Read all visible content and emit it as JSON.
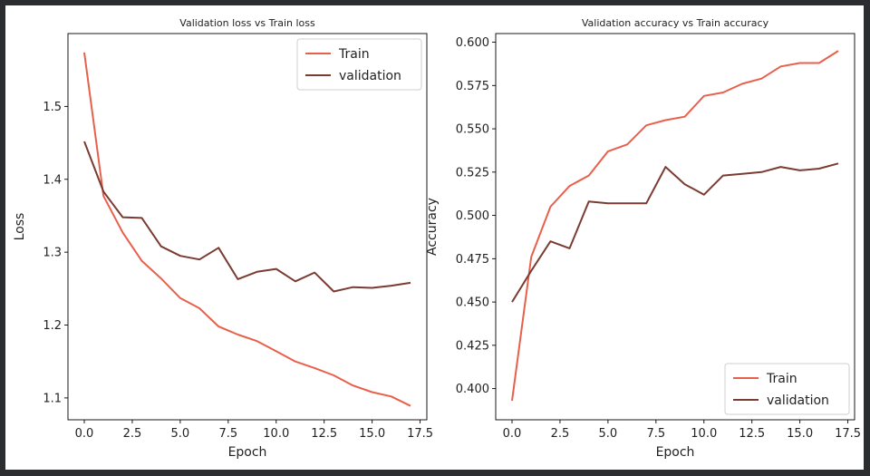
{
  "chart_data": [
    {
      "type": "line",
      "title": "Validation loss vs Train loss",
      "xlabel": "Epoch",
      "ylabel": "Loss",
      "xlim": [
        -0.85,
        17.85
      ],
      "ylim": [
        1.07,
        1.6
      ],
      "xticks": [
        0.0,
        2.5,
        5.0,
        7.5,
        10.0,
        12.5,
        15.0,
        17.5
      ],
      "xtick_labels": [
        "0.0",
        "2.5",
        "5.0",
        "7.5",
        "10.0",
        "12.5",
        "15.0",
        "17.5"
      ],
      "yticks": [
        1.1,
        1.2,
        1.3,
        1.4,
        1.5
      ],
      "ytick_labels": [
        "1.1",
        "1.2",
        "1.3",
        "1.4",
        "1.5"
      ],
      "legend_position": "top-right",
      "grid": false,
      "x": [
        0,
        1,
        2,
        3,
        4,
        5,
        6,
        7,
        8,
        9,
        10,
        11,
        12,
        13,
        14,
        15,
        16,
        17
      ],
      "series": [
        {
          "name": "Train",
          "color": "#e8604c",
          "values": [
            1.574,
            1.377,
            1.327,
            1.288,
            1.264,
            1.237,
            1.223,
            1.198,
            1.187,
            1.178,
            1.164,
            1.15,
            1.141,
            1.131,
            1.117,
            1.108,
            1.102,
            1.089
          ]
        },
        {
          "name": "validation",
          "color": "#7a3b32",
          "values": [
            1.452,
            1.383,
            1.348,
            1.347,
            1.308,
            1.295,
            1.29,
            1.306,
            1.263,
            1.273,
            1.277,
            1.26,
            1.272,
            1.246,
            1.252,
            1.251,
            1.254,
            1.258
          ]
        }
      ]
    },
    {
      "type": "line",
      "title": "Validation accuracy vs Train accuracy",
      "xlabel": "Epoch",
      "ylabel": "Accuracy",
      "xlim": [
        -0.85,
        17.85
      ],
      "ylim": [
        0.382,
        0.605
      ],
      "xticks": [
        0.0,
        2.5,
        5.0,
        7.5,
        10.0,
        12.5,
        15.0,
        17.5
      ],
      "xtick_labels": [
        "0.0",
        "2.5",
        "5.0",
        "7.5",
        "10.0",
        "12.5",
        "15.0",
        "17.5"
      ],
      "yticks": [
        0.4,
        0.425,
        0.45,
        0.475,
        0.5,
        0.525,
        0.55,
        0.575,
        0.6
      ],
      "ytick_labels": [
        "0.400",
        "0.425",
        "0.450",
        "0.475",
        "0.500",
        "0.525",
        "0.550",
        "0.575",
        "0.600"
      ],
      "legend_position": "bottom-right",
      "grid": false,
      "x": [
        0,
        1,
        2,
        3,
        4,
        5,
        6,
        7,
        8,
        9,
        10,
        11,
        12,
        13,
        14,
        15,
        16,
        17
      ],
      "series": [
        {
          "name": "Train",
          "color": "#e8604c",
          "values": [
            0.393,
            0.476,
            0.505,
            0.517,
            0.523,
            0.537,
            0.541,
            0.552,
            0.555,
            0.557,
            0.569,
            0.571,
            0.576,
            0.579,
            0.586,
            0.588,
            0.588,
            0.595
          ]
        },
        {
          "name": "validation",
          "color": "#7a3b32",
          "values": [
            0.45,
            0.468,
            0.485,
            0.481,
            0.508,
            0.507,
            0.507,
            0.507,
            0.528,
            0.518,
            0.512,
            0.523,
            0.524,
            0.525,
            0.528,
            0.526,
            0.527,
            0.53
          ]
        }
      ]
    }
  ]
}
